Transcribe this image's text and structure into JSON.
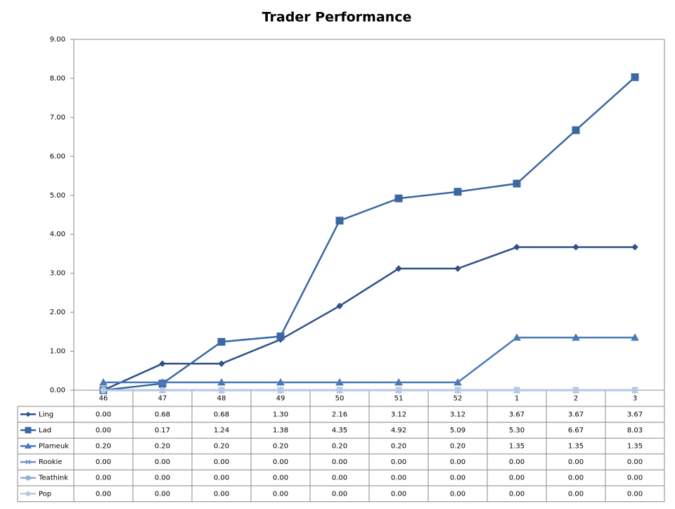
{
  "chart_data": {
    "type": "line",
    "title": "Trader Performance",
    "categories": [
      "46",
      "47",
      "48",
      "49",
      "50",
      "51",
      "52",
      "1",
      "2",
      "3"
    ],
    "ylim": [
      0,
      9
    ],
    "yticks": [
      {
        "value": 0,
        "label": "0.00"
      },
      {
        "value": 1,
        "label": "1.00"
      },
      {
        "value": 2,
        "label": "2.00"
      },
      {
        "value": 3,
        "label": "3.00"
      },
      {
        "value": 4,
        "label": "4.00"
      },
      {
        "value": 5,
        "label": "5.00"
      },
      {
        "value": 6,
        "label": "6.00"
      },
      {
        "value": 7,
        "label": "7.00"
      },
      {
        "value": 8,
        "label": "8.00"
      },
      {
        "value": 9,
        "label": "9.00"
      }
    ],
    "grid": false,
    "series": [
      {
        "name": "Ling",
        "color": "#2f5189",
        "marker": "diamond",
        "values": [
          0,
          0.68,
          0.68,
          1.3,
          2.16,
          3.12,
          3.12,
          3.67,
          3.67,
          3.67
        ],
        "value_labels": [
          "0.00",
          "0.68",
          "0.68",
          "1.30",
          "2.16",
          "3.12",
          "3.12",
          "3.67",
          "3.67",
          "3.67"
        ]
      },
      {
        "name": "Lad",
        "color": "#3b67a2",
        "marker": "square",
        "values": [
          0,
          0.17,
          1.24,
          1.38,
          4.35,
          4.92,
          5.09,
          5.3,
          6.67,
          8.03
        ],
        "value_labels": [
          "0.00",
          "0.17",
          "1.24",
          "1.38",
          "4.35",
          "4.92",
          "5.09",
          "5.30",
          "6.67",
          "8.03"
        ]
      },
      {
        "name": "Plameuk",
        "color": "#4a79b6",
        "marker": "triangle",
        "values": [
          0.2,
          0.2,
          0.2,
          0.2,
          0.2,
          0.2,
          0.2,
          1.35,
          1.35,
          1.35
        ],
        "value_labels": [
          "0.20",
          "0.20",
          "0.20",
          "0.20",
          "0.20",
          "0.20",
          "0.20",
          "1.35",
          "1.35",
          "1.35"
        ]
      },
      {
        "name": "Rookie",
        "color": "#6f93c8",
        "marker": "x",
        "values": [
          0,
          0,
          0,
          0,
          0,
          0,
          0,
          0,
          0,
          0
        ],
        "value_labels": [
          "0.00",
          "0.00",
          "0.00",
          "0.00",
          "0.00",
          "0.00",
          "0.00",
          "0.00",
          "0.00",
          "0.00"
        ]
      },
      {
        "name": "Teathink",
        "color": "#8eaad6",
        "marker": "star",
        "values": [
          0,
          0,
          0,
          0,
          0,
          0,
          0,
          0,
          0,
          0
        ],
        "value_labels": [
          "0.00",
          "0.00",
          "0.00",
          "0.00",
          "0.00",
          "0.00",
          "0.00",
          "0.00",
          "0.00",
          "0.00"
        ]
      },
      {
        "name": "Pop",
        "color": "#b8c9e5",
        "marker": "circle",
        "values": [
          0,
          0,
          0,
          0,
          0,
          0,
          0,
          0,
          0,
          0
        ],
        "value_labels": [
          "0.00",
          "0.00",
          "0.00",
          "0.00",
          "0.00",
          "0.00",
          "0.00",
          "0.00",
          "0.00",
          "0.00"
        ]
      }
    ]
  }
}
